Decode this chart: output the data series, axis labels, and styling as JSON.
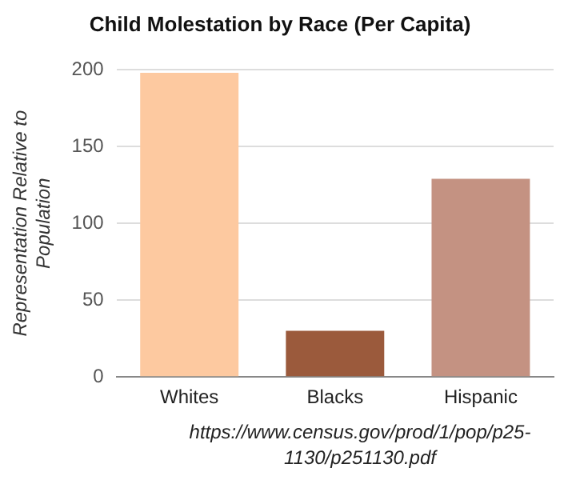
{
  "chart_data": {
    "type": "bar",
    "title": "Child Molestation by Race (Per Capita)",
    "ylabel": "Representation Relative to Population",
    "categories": [
      "Whites",
      "Blacks",
      "Hispanic"
    ],
    "values": [
      198,
      30,
      129
    ],
    "colors": [
      "#fdc9a0",
      "#9b5a3c",
      "#c49282"
    ],
    "ylim": [
      0,
      200
    ],
    "yticks": [
      0,
      50,
      100,
      150,
      200
    ],
    "grid": "y",
    "annotations": [
      "https://www.census.gov/prod/1/pop/p25-1130/p251130.pdf"
    ]
  }
}
